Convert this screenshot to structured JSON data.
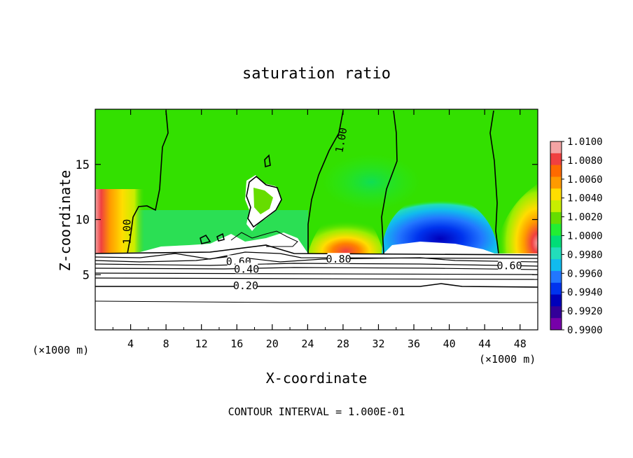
{
  "chart_data": {
    "type": "heatmap",
    "title": "saturation ratio",
    "xlabel": "X-coordinate",
    "ylabel": "Z-coordinate",
    "x_unit_left": "(×1000 m)",
    "x_unit_right": "(×1000 m)",
    "xlim": [
      0,
      50
    ],
    "ylim": [
      0,
      20
    ],
    "x_ticks": [
      4,
      8,
      12,
      16,
      20,
      24,
      28,
      32,
      36,
      40,
      44,
      48
    ],
    "y_ticks": [
      5,
      10,
      15
    ],
    "footer": "CONTOUR INTERVAL = 1.000E-01",
    "colorbar": {
      "ticks": [
        "1.0100",
        "1.0080",
        "1.0060",
        "1.0040",
        "1.0020",
        "1.0000",
        "0.9980",
        "0.9960",
        "0.9940",
        "0.9920",
        "0.9900"
      ],
      "colors": [
        "#f4a4a4",
        "#f04040",
        "#ff6a00",
        "#ff9a00",
        "#ffdd00",
        "#c8ee00",
        "#66dd00",
        "#22ee33",
        "#00dd77",
        "#22ddbb",
        "#11bbee",
        "#2277ff",
        "#0033ee",
        "#0000bb",
        "#330099",
        "#7700aa"
      ]
    },
    "contour_labels": [
      {
        "text": "1.00",
        "x": 3.6,
        "y": 8.9,
        "rot": -90
      },
      {
        "text": "1.00",
        "x": 27.8,
        "y": 17.2,
        "rot": -80
      },
      {
        "text": "0.60",
        "x": 16.2,
        "y": 6.2,
        "rot": 0
      },
      {
        "text": "0.40",
        "x": 17.1,
        "y": 5.5,
        "rot": 0
      },
      {
        "text": "0.20",
        "x": 17.0,
        "y": 4.0,
        "rot": 0
      },
      {
        "text": "0.80",
        "x": 27.5,
        "y": 6.4,
        "rot": 0
      },
      {
        "text": "0.60",
        "x": 46.8,
        "y": 5.8,
        "rot": 0
      }
    ]
  }
}
